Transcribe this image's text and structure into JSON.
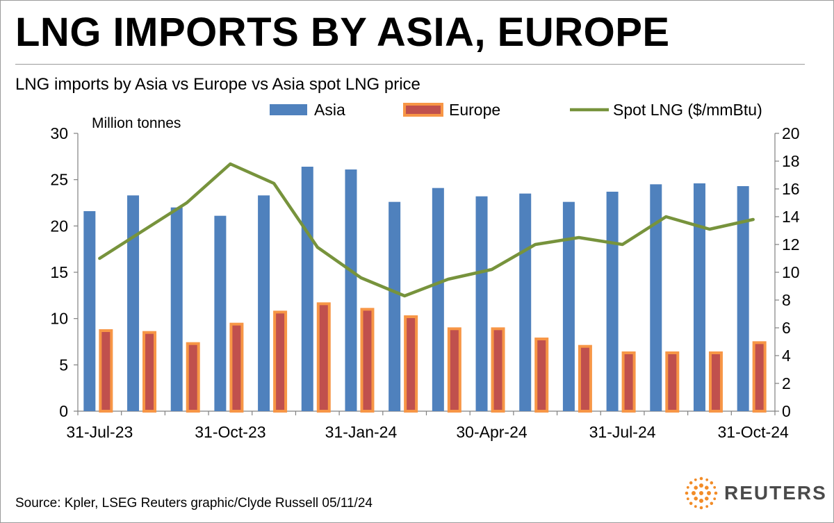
{
  "headline": "LNG IMPORTS BY ASIA, EUROPE",
  "source": "Source: Kpler, LSEG    Reuters graphic/Clyde Russell 05/11/24",
  "brand": "REUTERS",
  "colors": {
    "asia": "#4F81BD",
    "europe_fill": "#C0504D",
    "europe_border": "#F79646",
    "spot": "#77933C",
    "axis": "#808080"
  },
  "chart_data": {
    "type": "bar",
    "title": "LNG imports by Asia vs Europe vs Asia spot LNG price",
    "ylabel": "Million tonnes",
    "ylim": [
      0,
      30
    ],
    "y_ticks": [
      "0",
      "5",
      "10",
      "15",
      "20",
      "25",
      "30"
    ],
    "y2lim": [
      0,
      20
    ],
    "y2_ticks": [
      "0",
      "2",
      "4",
      "6",
      "8",
      "10",
      "12",
      "14",
      "16",
      "18",
      "20"
    ],
    "x_tick_labels": [
      "31-Jul-23",
      "31-Oct-23",
      "31-Jan-24",
      "30-Apr-24",
      "31-Jul-24",
      "31-Oct-24"
    ],
    "x_tick_label_month_index": [
      0,
      3,
      6,
      9,
      12,
      15
    ],
    "legend_position": "top",
    "categories": [
      "Jul-23",
      "Aug-23",
      "Sep-23",
      "Oct-23",
      "Nov-23",
      "Dec-23",
      "Jan-24",
      "Feb-24",
      "Mar-24",
      "Apr-24",
      "May-24",
      "Jun-24",
      "Jul-24",
      "Aug-24",
      "Sep-24",
      "Oct-24"
    ],
    "series": [
      {
        "name": "Asia",
        "type": "bar",
        "axis": "left",
        "values": [
          21.6,
          23.3,
          22.0,
          21.1,
          23.3,
          26.4,
          26.1,
          22.6,
          24.1,
          23.2,
          23.5,
          22.6,
          23.7,
          24.5,
          24.6,
          24.3
        ]
      },
      {
        "name": "Europe",
        "type": "bar",
        "axis": "left",
        "values": [
          8.7,
          8.5,
          7.3,
          9.4,
          10.7,
          11.6,
          11.0,
          10.2,
          8.9,
          8.9,
          7.8,
          7.0,
          6.3,
          6.3,
          6.3,
          7.4
        ]
      },
      {
        "name": "Spot LNG ($/mmBtu)",
        "type": "line",
        "axis": "right",
        "values": [
          11.0,
          13.0,
          15.0,
          17.8,
          16.4,
          11.8,
          9.6,
          8.3,
          9.5,
          10.2,
          12.0,
          12.5,
          12.0,
          14.0,
          13.1,
          13.8
        ]
      }
    ]
  }
}
